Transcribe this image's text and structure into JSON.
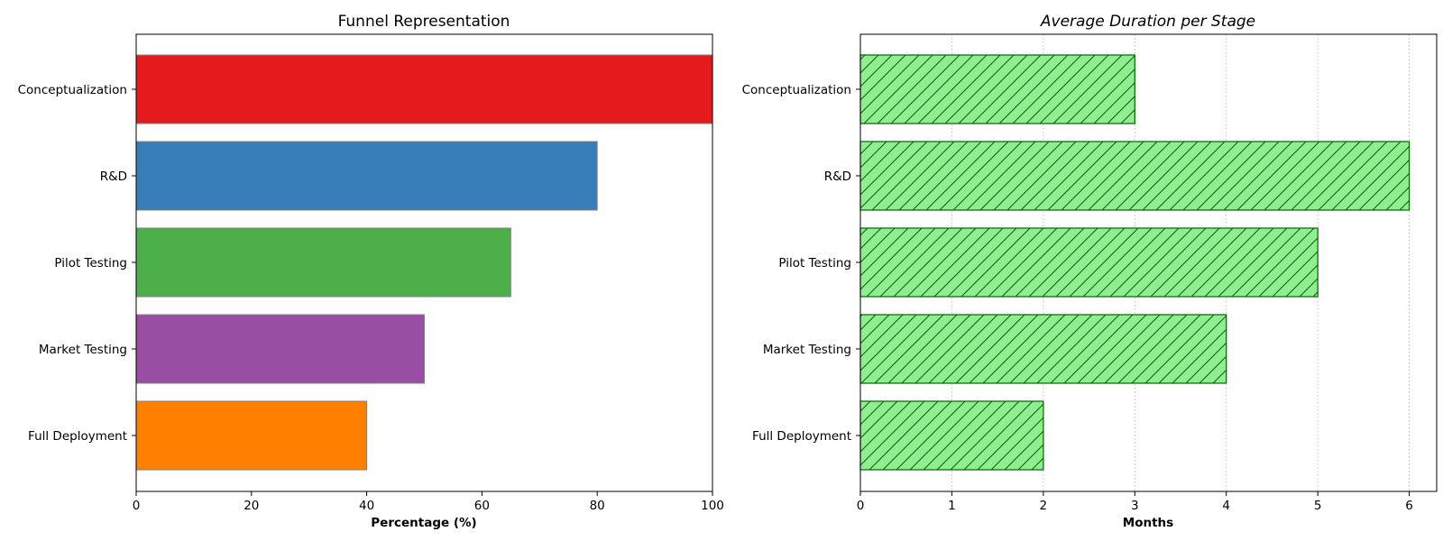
{
  "chart_data": [
    {
      "type": "bar",
      "orientation": "horizontal",
      "title": "Funnel Representation",
      "xlabel": "Percentage (%)",
      "ylabel": "",
      "categories": [
        "Conceptualization",
        "R&D",
        "Pilot Testing",
        "Market Testing",
        "Full Deployment"
      ],
      "values": [
        100,
        80,
        65,
        50,
        40
      ],
      "colors": [
        "#e41a1c",
        "#377eb8",
        "#4daf4a",
        "#984ea3",
        "#ff7f00"
      ],
      "edge_color": "#808080",
      "xlim": [
        0,
        100
      ],
      "xticks": [
        0,
        20,
        40,
        60,
        80,
        100
      ],
      "grid": false
    },
    {
      "type": "bar",
      "orientation": "horizontal",
      "title": "Average Duration per Stage",
      "xlabel": "Months",
      "ylabel": "",
      "categories": [
        "Conceptualization",
        "R&D",
        "Pilot Testing",
        "Market Testing",
        "Full Deployment"
      ],
      "values": [
        3,
        6,
        5,
        4,
        2
      ],
      "fill_color": "#90ee90",
      "edge_color": "#006400",
      "hatch": "diagonal",
      "xlim": [
        0,
        6.3
      ],
      "xticks": [
        0,
        1,
        2,
        3,
        4,
        5,
        6
      ],
      "grid": true
    }
  ]
}
